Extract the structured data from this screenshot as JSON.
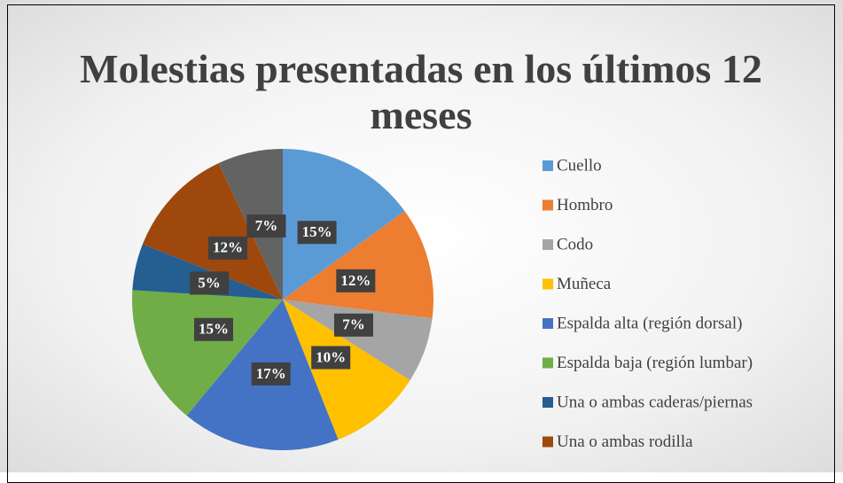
{
  "chart_data": {
    "type": "pie",
    "title": "Molestias presentadas en los últimos 12 meses",
    "categories": [
      "Cuello",
      "Hombro",
      "Codo",
      "Muñeca",
      "Espalda alta (región dorsal)",
      "Espalda baja (región lumbar)",
      "Una o ambas caderas/piernas",
      "Una o ambas rodilla",
      null
    ],
    "values": [
      15,
      12,
      7,
      10,
      17,
      15,
      5,
      12,
      7
    ],
    "value_labels": [
      "15%",
      "12%",
      "7%",
      "10%",
      "17%",
      "15%",
      "5%",
      "12%",
      "7%"
    ],
    "colors": [
      "#5b9bd5",
      "#ed7d31",
      "#a5a5a5",
      "#ffc000",
      "#4472c4",
      "#70ad47",
      "#255e91",
      "#9e480e",
      "#636363"
    ],
    "legend": "right"
  }
}
